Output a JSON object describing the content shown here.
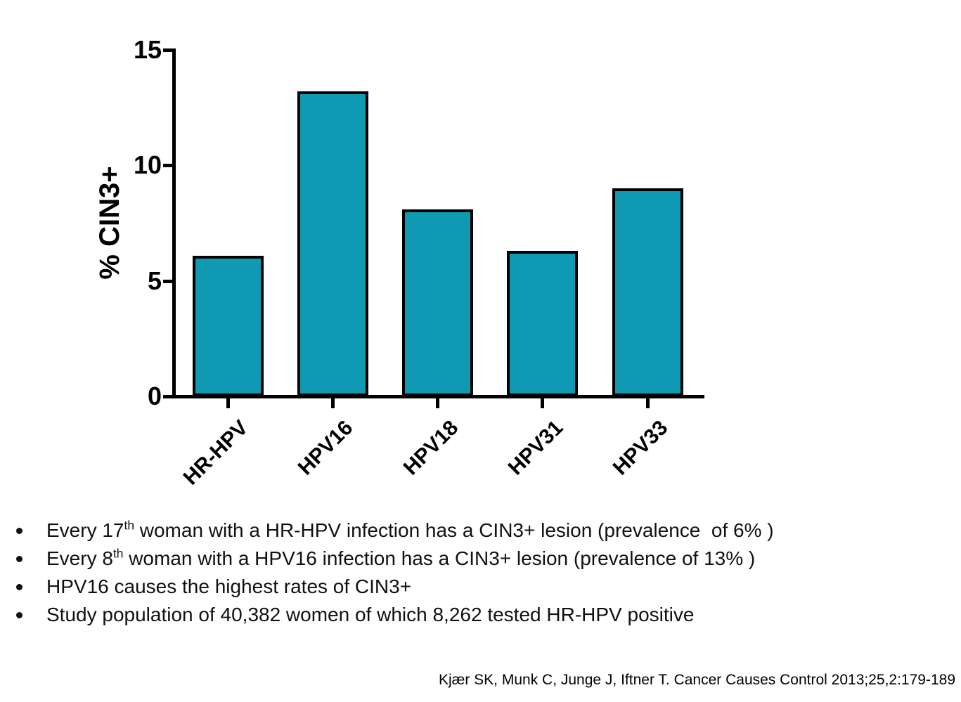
{
  "chart_data": {
    "type": "bar",
    "categories": [
      "HR-HPV",
      "HPV16",
      "HPV18",
      "HPV31",
      "HPV33"
    ],
    "values": [
      6.1,
      13.2,
      8.1,
      6.3,
      9.0
    ],
    "title": "",
    "xlabel": "",
    "ylabel": "% CIN3+",
    "ylim": [
      0,
      15
    ],
    "yticks": [
      0,
      5,
      10,
      15
    ],
    "grid": false,
    "legend": "none",
    "bar_color": "#1099b2",
    "bar_border_color": "#000000",
    "axis_color": "#000000"
  },
  "bullets": [
    {
      "pre": "Every 17",
      "sup": "th",
      "post": " woman with a HR-HPV infection has a CIN3+ lesion (prevalence  of 6% )"
    },
    {
      "pre": "Every 8",
      "sup": "th",
      "post": " woman with a HPV16 infection has a CIN3+ lesion (prevalence of 13% )"
    },
    {
      "pre": "HPV16 causes the highest rates of CIN3+",
      "sup": "",
      "post": ""
    },
    {
      "pre": "Study population of 40,382 women of which 8,262 tested HR-HPV positive",
      "sup": "",
      "post": ""
    }
  ],
  "citation": "Kjær SK, Munk C, Junge J, Iftner T. Cancer Causes Control 2013;25,2:179-189"
}
